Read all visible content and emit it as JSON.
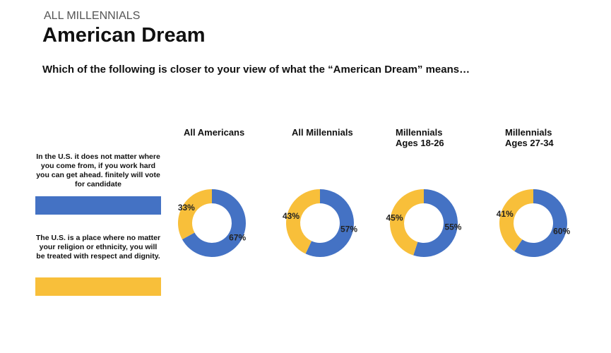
{
  "header": {
    "kicker": "ALL MILLENNIALS",
    "title": "American Dream",
    "question": "Which of the following is closer to your view of what the “American Dream” means…"
  },
  "legend": {
    "items": [
      {
        "label": "In the U.S. it does not matter where you come from, if you work hard you can get ahead. finitely will vote for candidate",
        "color": "#4472c4"
      },
      {
        "label": "The U.S. is a place where no matter your religion or ethnicity, you will be treated with respect and dignity.",
        "color": "#f8bf3a"
      }
    ]
  },
  "chart_data": [
    {
      "type": "donut",
      "title": "All Americans",
      "values": [
        67,
        33
      ],
      "value_labels": [
        "67%",
        "33%"
      ]
    },
    {
      "type": "donut",
      "title": "All Millennials",
      "values": [
        57,
        43
      ],
      "value_labels": [
        "57%",
        "43%"
      ]
    },
    {
      "type": "donut",
      "title": "Millennials\nAges 18-26",
      "values": [
        55,
        45
      ],
      "value_labels": [
        "55%",
        "45%"
      ]
    },
    {
      "type": "donut",
      "title": "Millennials\nAges 27-34",
      "values": [
        60,
        41
      ],
      "value_labels": [
        "60%",
        "41%"
      ]
    }
  ]
}
